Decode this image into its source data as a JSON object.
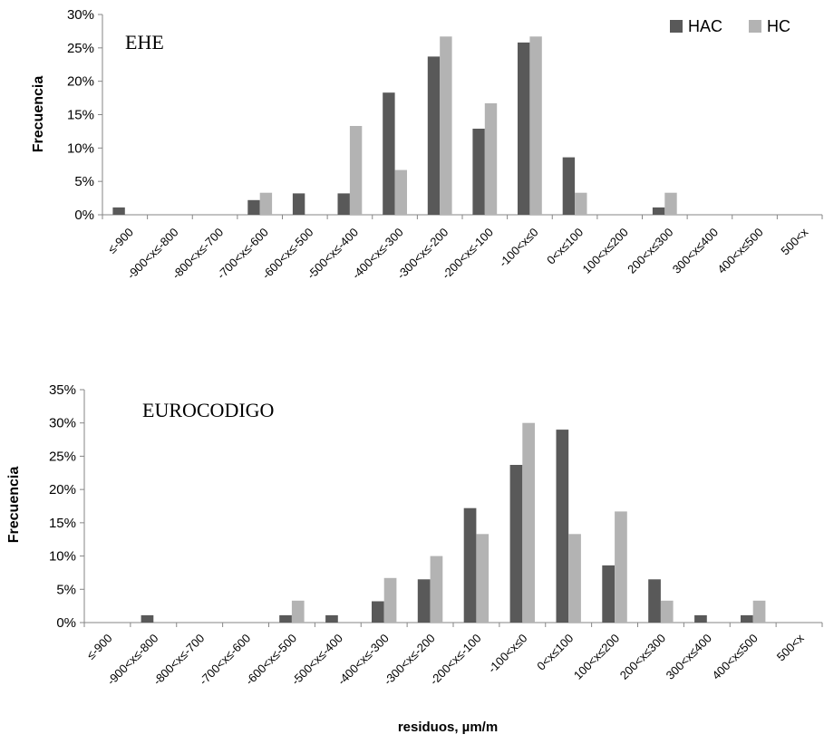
{
  "legend": [
    {
      "name": "HAC",
      "color": "#595959"
    },
    {
      "name": "HC",
      "color": "#b3b3b3"
    }
  ],
  "chart_data": [
    {
      "type": "bar",
      "title": "EHE",
      "xlabel": "",
      "ylabel": "Frecuencia",
      "ylim": [
        0,
        0.3
      ],
      "yticks": [
        "0%",
        "5%",
        "10%",
        "15%",
        "20%",
        "25%",
        "30%"
      ],
      "legend_position": "top-right",
      "grid": false,
      "categories": [
        "≤-900",
        "-900<x≤-800",
        "-800<x≤-700",
        "-700<x≤-600",
        "-600<x≤-500",
        "-500<x≤-400",
        "-400<x≤-300",
        "-300<x≤-200",
        "-200<x≤-100",
        "-100<x≤0",
        "0<x≤100",
        "100<x≤200",
        "200<x≤300",
        "300<x≤400",
        "400<x≤500",
        "500<x"
      ],
      "series": [
        {
          "name": "HAC",
          "values": [
            0.011,
            0,
            0,
            0.022,
            0.032,
            0.032,
            0.183,
            0.237,
            0.129,
            0.258,
            0.086,
            0,
            0.011,
            0,
            0,
            0
          ]
        },
        {
          "name": "HC",
          "values": [
            0,
            0,
            0,
            0.033,
            0,
            0.133,
            0.067,
            0.267,
            0.167,
            0.267,
            0.033,
            0,
            0.033,
            0,
            0,
            0
          ]
        }
      ]
    },
    {
      "type": "bar",
      "title": "EUROCODIGO",
      "xlabel": "residuos, µm/m",
      "ylabel": "Frecuencia",
      "ylim": [
        0,
        0.35
      ],
      "yticks": [
        "0%",
        "5%",
        "10%",
        "15%",
        "20%",
        "25%",
        "30%",
        "35%"
      ],
      "grid": false,
      "categories": [
        "≤-900",
        "-900<x≤-800",
        "-800<x≤-700",
        "-700<x≤-600",
        "-600<x≤-500",
        "-500<x≤-400",
        "-400<x≤-300",
        "-300<x≤-200",
        "-200<x≤-100",
        "-100<x≤0",
        "0<x≤100",
        "100<x≤200",
        "200<x≤300",
        "300<x≤400",
        "400<x≤500",
        "500<x"
      ],
      "series": [
        {
          "name": "HAC",
          "values": [
            0,
            0.011,
            0,
            0,
            0.011,
            0.011,
            0.032,
            0.065,
            0.172,
            0.237,
            0.29,
            0.086,
            0.065,
            0.011,
            0.011,
            0
          ]
        },
        {
          "name": "HC",
          "values": [
            0,
            0,
            0,
            0,
            0.033,
            0,
            0.067,
            0.1,
            0.133,
            0.3,
            0.133,
            0.167,
            0.033,
            0,
            0.033,
            0
          ]
        }
      ]
    }
  ]
}
